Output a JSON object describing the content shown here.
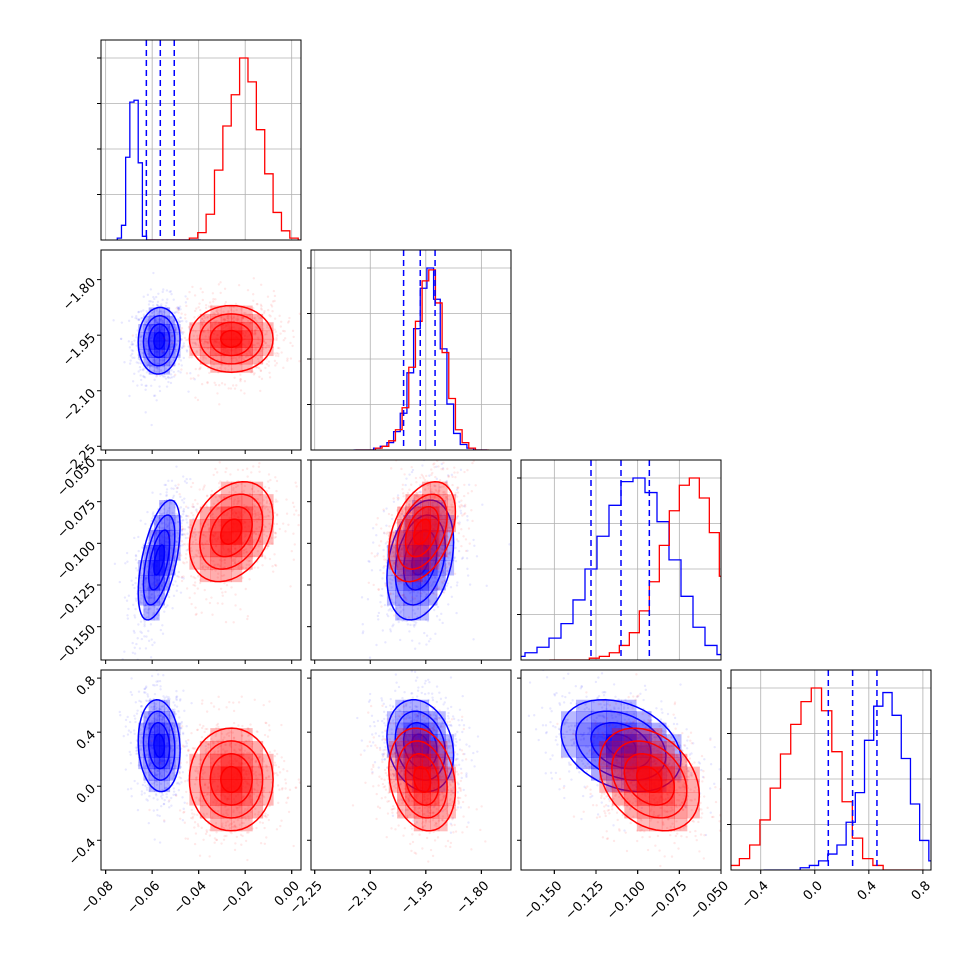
{
  "chart_data": {
    "type": "corner",
    "parameters": [
      {
        "ticks": [
          -0.08,
          -0.06,
          -0.04,
          -0.02,
          0.0
        ],
        "tick_labels": [
          "−0.08",
          "−0.06",
          "−0.04",
          "−0.02",
          "0.00"
        ],
        "range": [
          -0.082,
          0.004
        ]
      },
      {
        "ticks": [
          -2.25,
          -2.1,
          -1.95,
          -1.8
        ],
        "tick_labels": [
          "−2.25",
          "−2.10",
          "−1.95",
          "−1.80"
        ],
        "range": [
          -2.26,
          -1.72
        ]
      },
      {
        "ticks": [
          -0.15,
          -0.125,
          -0.1,
          -0.075,
          -0.05
        ],
        "tick_labels": [
          "−0.150",
          "−0.125",
          "−0.100",
          "−0.075",
          "−0.050"
        ],
        "range": [
          -0.17,
          -0.05
        ]
      },
      {
        "ticks": [
          -0.4,
          0.0,
          0.4,
          0.8
        ],
        "tick_labels": [
          "−0.4",
          "0.0",
          "0.4",
          "0.8"
        ],
        "range": [
          -0.62,
          0.86
        ]
      }
    ],
    "series": [
      {
        "color": "#0000ff",
        "means": [
          -0.057,
          -1.965,
          -0.11,
          0.3
        ],
        "sds": [
          0.0045,
          0.045,
          0.018,
          0.17
        ],
        "quantiles": [
          [
            -0.0625,
            -0.0565,
            -0.0505
          ],
          [
            -2.01,
            -1.965,
            -1.925
          ],
          [
            -0.128,
            -0.11,
            -0.093
          ],
          [
            0.1,
            0.28,
            0.46
          ]
        ],
        "hist1d": [
          [
            0.01,
            0.08,
            0.45,
            0.75,
            0.76,
            0.42,
            0.02,
            0,
            0,
            0,
            0,
            0,
            0,
            0,
            0,
            0,
            0,
            0,
            0,
            0
          ],
          [
            0,
            0,
            0,
            0.01,
            0.02,
            0.04,
            0.1,
            0.2,
            0.42,
            0.66,
            0.88,
            0.99,
            0.82,
            0.55,
            0.25,
            0.09,
            0.03,
            0.01,
            0,
            0
          ],
          [
            0.01,
            0.02,
            0.04,
            0.07,
            0.12,
            0.2,
            0.33,
            0.5,
            0.68,
            0.85,
            0.98,
            1.0,
            0.92,
            0.76,
            0.55,
            0.35,
            0.18,
            0.08,
            0.03,
            0.01
          ],
          [
            0,
            0,
            0,
            0,
            0.01,
            0.02,
            0.04,
            0.07,
            0.11,
            0.21,
            0.34,
            0.57,
            0.72,
            0.78,
            0.68,
            0.49,
            0.29,
            0.13,
            0.04,
            0.01
          ]
        ],
        "corr": {
          "1-0": 0.05,
          "2-0": 0.55,
          "2-1": 0.3,
          "3-0": -0.1,
          "3-1": -0.2,
          "3-2": -0.3
        }
      },
      {
        "color": "#ff0000",
        "means": [
          -0.026,
          -1.96,
          -0.093,
          0.05
        ],
        "sds": [
          0.009,
          0.045,
          0.015,
          0.19
        ],
        "quantiles": [
          [
            -0.035,
            -0.026,
            -0.017
          ],
          [
            -2.005,
            -1.96,
            -1.915
          ],
          [
            -0.108,
            -0.093,
            -0.078
          ],
          [
            -0.14,
            0.05,
            0.24
          ]
        ],
        "hist1d": [
          [
            0,
            0,
            0,
            0,
            0,
            0.01,
            0.04,
            0.14,
            0.38,
            0.62,
            0.79,
            0.99,
            0.86,
            0.6,
            0.36,
            0.15,
            0.05,
            0.01,
            0,
            0
          ],
          [
            0,
            0,
            0,
            0.01,
            0.02,
            0.05,
            0.11,
            0.23,
            0.45,
            0.7,
            0.92,
            0.98,
            0.8,
            0.53,
            0.28,
            0.11,
            0.04,
            0.01,
            0,
            0
          ],
          [
            0,
            0,
            0,
            0,
            0.01,
            0.02,
            0.04,
            0.08,
            0.15,
            0.27,
            0.43,
            0.63,
            0.82,
            0.96,
            1.0,
            0.89,
            0.7,
            0.46,
            0.26,
            0.1
          ],
          [
            0,
            0.02,
            0.05,
            0.11,
            0.22,
            0.36,
            0.51,
            0.64,
            0.74,
            0.8,
            0.7,
            0.52,
            0.3,
            0.14,
            0.05,
            0.02,
            0,
            0,
            0,
            0
          ]
        ],
        "corr": {
          "1-0": 0.0,
          "2-0": 0.3,
          "2-1": 0.4,
          "3-0": 0.0,
          "3-1": -0.2,
          "3-2": -0.3
        }
      }
    ],
    "grid": true
  }
}
